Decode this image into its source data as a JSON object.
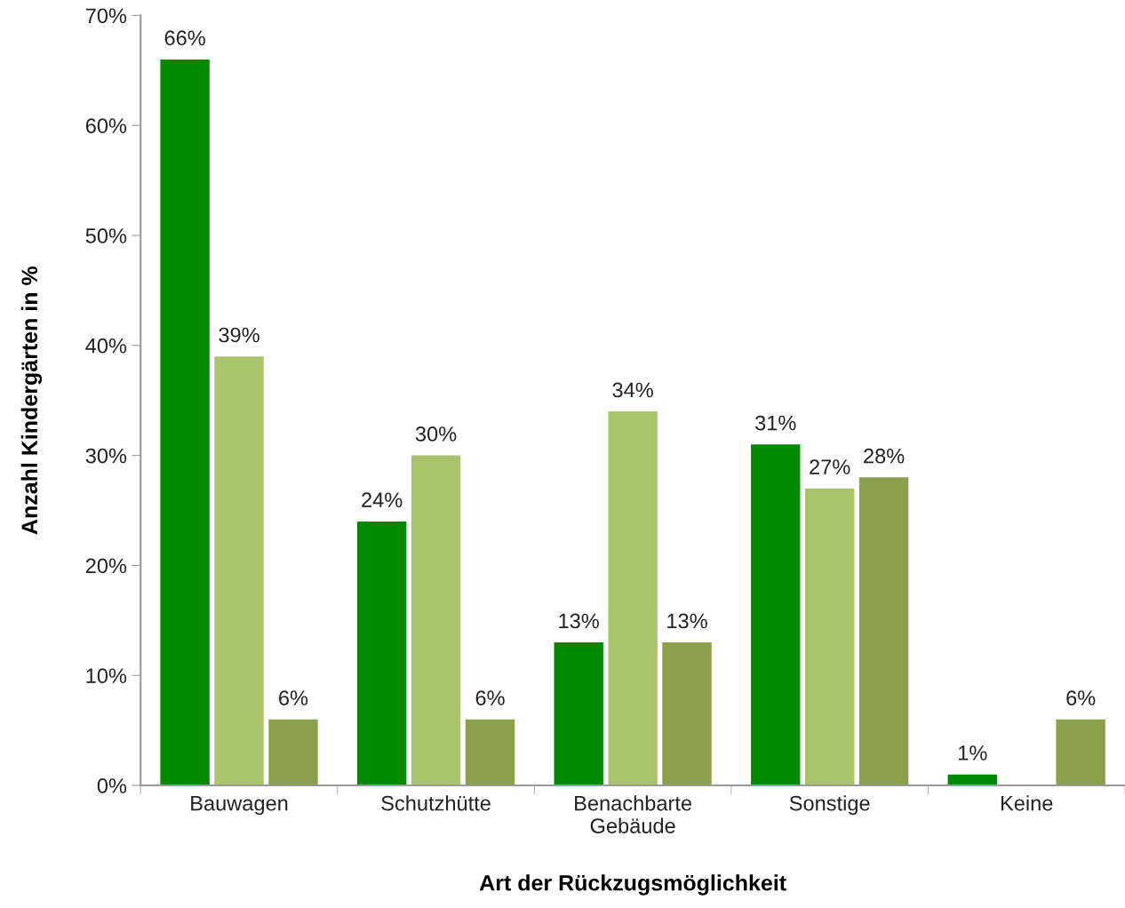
{
  "chart_data": {
    "type": "bar",
    "xlabel": "Art der Rückzugsmöglichkeit",
    "ylabel": "Anzahl Kindergärten in %",
    "categories": [
      "Bauwagen",
      "Schutzhütte",
      "Benachbarte\nGebäude",
      "Sonstige",
      "Keine"
    ],
    "series": [
      {
        "color": "#008a00",
        "values": [
          66,
          24,
          13,
          31,
          1
        ],
        "value_labels": [
          "66%",
          "24%",
          "13%",
          "31%",
          "1%"
        ]
      },
      {
        "color": "#a9c46a",
        "values": [
          39,
          30,
          34,
          27,
          null
        ],
        "value_labels": [
          "39%",
          "30%",
          "34%",
          "27%",
          null
        ]
      },
      {
        "color": "#8aa04b",
        "values": [
          6,
          6,
          13,
          28,
          6
        ],
        "value_labels": [
          "6%",
          "6%",
          "13%",
          "28%",
          "6%"
        ]
      }
    ],
    "ylim": [
      0,
      70
    ],
    "yticks": [
      {
        "value": 0,
        "label": "0%"
      },
      {
        "value": 10,
        "label": "10%"
      },
      {
        "value": 20,
        "label": "20%"
      },
      {
        "value": 30,
        "label": "30%"
      },
      {
        "value": 40,
        "label": "40%"
      },
      {
        "value": 50,
        "label": "50%"
      },
      {
        "value": 60,
        "label": "60%"
      },
      {
        "value": 70,
        "label": "70%"
      }
    ],
    "grid": false
  }
}
